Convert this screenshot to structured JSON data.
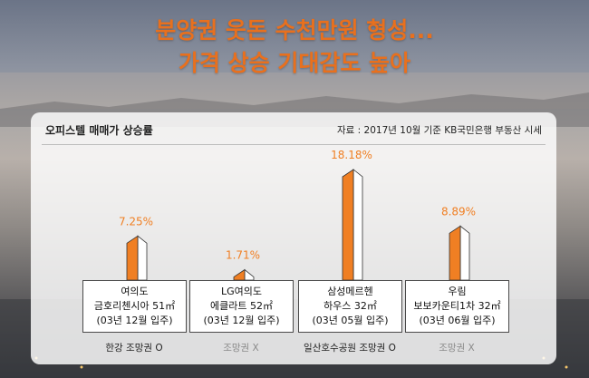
{
  "headline": {
    "line1": "분양권 웃돈 수천만원 형성...",
    "line2": "가격 상승 기대감도 높아"
  },
  "panel": {
    "title": "오피스텔 매매가 상승률",
    "source": "자료 : 2017년 10월 기준 KB국민은행 부동산 시세"
  },
  "colors": {
    "accent": "#f07f23",
    "bar_shadow": "#ffffff",
    "headline": "#e8701e"
  },
  "chart_data": {
    "type": "bar",
    "title": "오피스텔 매매가 상승률",
    "unit": "%",
    "ylim": [
      0,
      18.18
    ],
    "categories": [
      "여의도 금호리첸시아 51㎡",
      "LG여의도 에클라트 52㎡",
      "삼성메르헨 하우스 32㎡",
      "우림 보보카운티1차 32㎡"
    ],
    "values": [
      7.25,
      1.71,
      18.18,
      8.89
    ],
    "value_labels": [
      "7.25%",
      "1.71%",
      "18.18%",
      "8.89%"
    ],
    "items": [
      {
        "line1": "여의도",
        "line2": "금호리첸시아 51㎡",
        "line3": "(03년 12월 입주)",
        "view": "한강 조망권 O",
        "view_available": true
      },
      {
        "line1": "LG여의도",
        "line2": "에클라트 52㎡",
        "line3": "(03년 12월 입주)",
        "view": "조망권 X",
        "view_available": false
      },
      {
        "line1": "삼성메르헨",
        "line2": "하우스 32㎡",
        "line3": "(03년 05월 입주)",
        "view": "일산호수공원 조망권 O",
        "view_available": true
      },
      {
        "line1": "우림",
        "line2": "보보카운티1차 32㎡",
        "line3": "(03년 06월 입주)",
        "view": "조망권 X",
        "view_available": false
      }
    ]
  }
}
